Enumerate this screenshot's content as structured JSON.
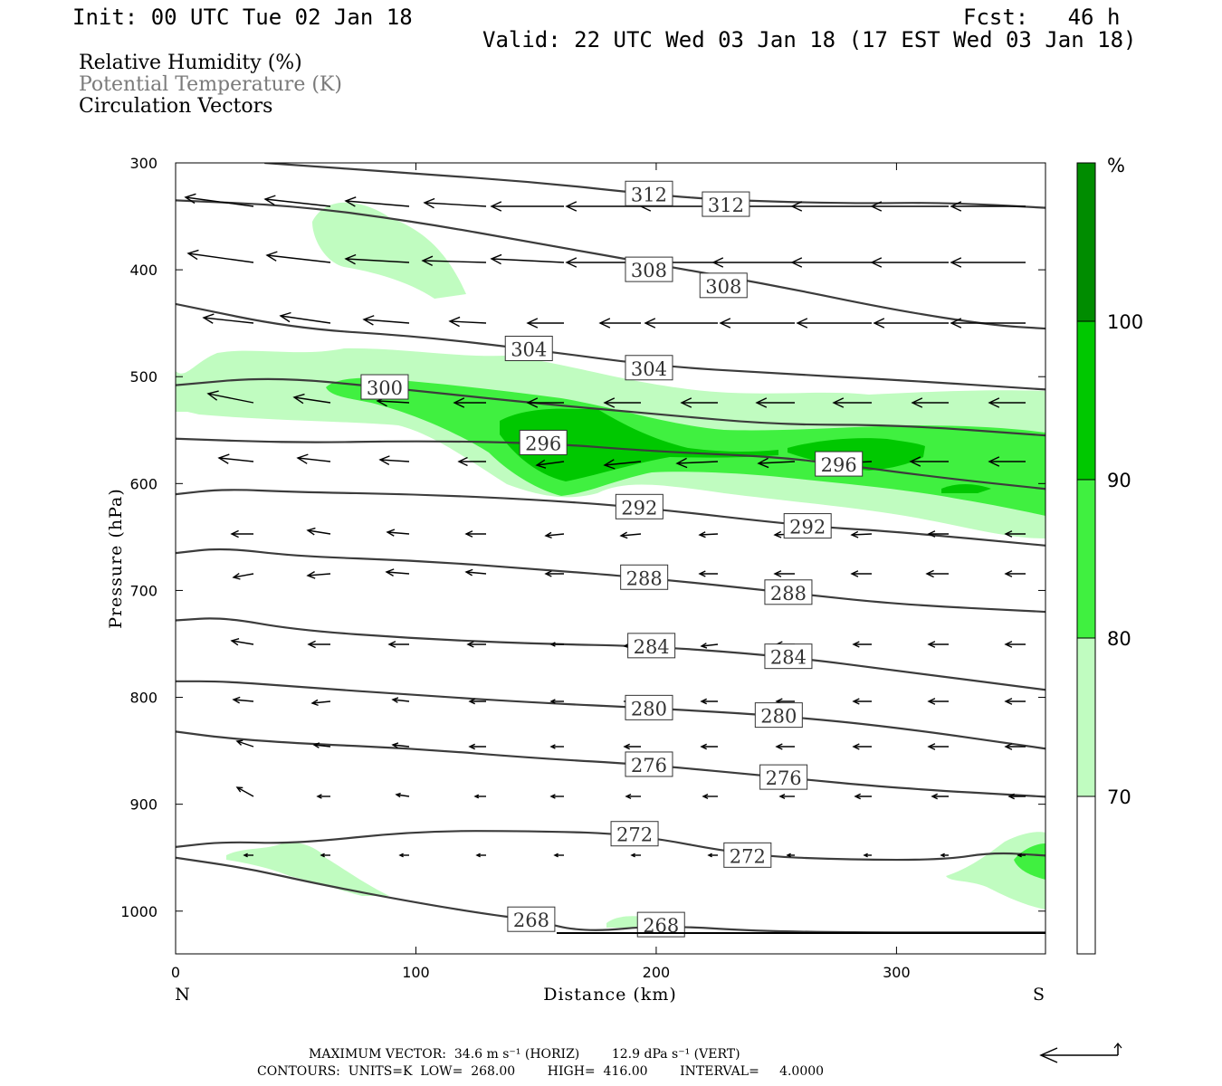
{
  "header": {
    "init": "Init: 00 UTC Tue 02 Jan 18",
    "fcst": "Fcst:   46 h",
    "valid": "Valid: 22 UTC Wed 03 Jan 18 (17 EST Wed 03 Jan 18)"
  },
  "legend": {
    "rh": "Relative Humidity (%)",
    "theta": "Potential Temperature (K)",
    "vectors": "Circulation Vectors"
  },
  "footer": {
    "max_vector": "MAXIMUM VECTOR:  34.6 m s⁻¹ (HORIZ)        12.9 dPa s⁻¹ (VERT)",
    "contours": "CONTOURS:  UNITS=K  LOW=  268.00        HIGH=  416.00        INTERVAL=     4.0000"
  },
  "colors": {
    "rh70": "#c0fcc0",
    "rh80": "#40f040",
    "rh90": "#00c800",
    "rh100": "#008c00",
    "theta": "#3c3c3c",
    "frame": "#000000"
  },
  "chart_data": {
    "type": "cross-section",
    "xlabel": "Distance (km)",
    "ylabel": "Pressure (hPa)",
    "xlim": [
      0,
      362
    ],
    "ylim": [
      1040,
      300
    ],
    "x_ticks": [
      "0",
      "100",
      "200",
      "300"
    ],
    "y_ticks": [
      "300",
      "400",
      "500",
      "600",
      "700",
      "800",
      "900",
      "1000"
    ],
    "endpoints": {
      "left": "N",
      "right": "S"
    },
    "colorbar": {
      "unit": "%",
      "levels": [
        "70",
        "80",
        "90",
        "100"
      ],
      "colors": [
        "#ffffff",
        "#c0fcc0",
        "#40f040",
        "#00c800",
        "#008c00"
      ]
    },
    "theta_contours": [
      {
        "value": 312,
        "labels": [
          [
            "312",
            197,
            329
          ],
          [
            "312",
            229,
            339
          ]
        ],
        "points": [
          [
            37,
            300
          ],
          [
            100,
            310
          ],
          [
            150,
            318
          ],
          [
            200,
            330
          ],
          [
            230,
            335
          ],
          [
            280,
            338
          ],
          [
            320,
            337
          ],
          [
            362,
            342
          ]
        ]
      },
      {
        "value": 308,
        "labels": [
          [
            "308",
            197,
            400
          ],
          [
            "308",
            228,
            415
          ]
        ],
        "points": [
          [
            0,
            335
          ],
          [
            50,
            340
          ],
          [
            100,
            355
          ],
          [
            150,
            375
          ],
          [
            200,
            395
          ],
          [
            250,
            415
          ],
          [
            300,
            438
          ],
          [
            340,
            452
          ],
          [
            362,
            455
          ]
        ]
      },
      {
        "value": 304,
        "labels": [
          [
            "304",
            147,
            474
          ],
          [
            "304",
            197,
            492
          ]
        ],
        "points": [
          [
            0,
            432
          ],
          [
            50,
            455
          ],
          [
            100,
            462
          ],
          [
            150,
            475
          ],
          [
            200,
            490
          ],
          [
            250,
            497
          ],
          [
            300,
            503
          ],
          [
            362,
            512
          ]
        ]
      },
      {
        "value": 300,
        "labels": [
          [
            "300",
            87,
            510
          ]
        ],
        "points": [
          [
            0,
            508
          ],
          [
            40,
            500
          ],
          [
            87,
            510
          ],
          [
            150,
            525
          ],
          [
            200,
            535
          ],
          [
            250,
            545
          ],
          [
            300,
            545
          ],
          [
            362,
            555
          ]
        ]
      },
      {
        "value": 296,
        "labels": [
          [
            "296",
            153,
            562
          ],
          [
            "296",
            276,
            582
          ]
        ],
        "points": [
          [
            0,
            558
          ],
          [
            50,
            562
          ],
          [
            100,
            560
          ],
          [
            153,
            562
          ],
          [
            200,
            570
          ],
          [
            250,
            575
          ],
          [
            276,
            582
          ],
          [
            320,
            595
          ],
          [
            362,
            605
          ]
        ]
      },
      {
        "value": 292,
        "labels": [
          [
            "292",
            193,
            622
          ],
          [
            "292",
            263,
            640
          ]
        ],
        "points": [
          [
            0,
            610
          ],
          [
            20,
            605
          ],
          [
            50,
            608
          ],
          [
            100,
            610
          ],
          [
            150,
            615
          ],
          [
            193,
            622
          ],
          [
            263,
            640
          ],
          [
            300,
            645
          ],
          [
            362,
            658
          ]
        ]
      },
      {
        "value": 288,
        "labels": [
          [
            "288",
            195,
            688
          ],
          [
            "288",
            255,
            702
          ]
        ],
        "points": [
          [
            0,
            665
          ],
          [
            20,
            660
          ],
          [
            50,
            668
          ],
          [
            100,
            672
          ],
          [
            150,
            680
          ],
          [
            195,
            688
          ],
          [
            255,
            702
          ],
          [
            300,
            713
          ],
          [
            362,
            720
          ]
        ]
      },
      {
        "value": 284,
        "labels": [
          [
            "284",
            198,
            752
          ],
          [
            "284",
            255,
            762
          ]
        ],
        "points": [
          [
            0,
            728
          ],
          [
            20,
            725
          ],
          [
            50,
            737
          ],
          [
            100,
            745
          ],
          [
            150,
            750
          ],
          [
            198,
            752
          ],
          [
            255,
            762
          ],
          [
            300,
            775
          ],
          [
            362,
            793
          ]
        ]
      },
      {
        "value": 280,
        "labels": [
          [
            "280",
            197,
            810
          ],
          [
            "280",
            251,
            817
          ]
        ],
        "points": [
          [
            0,
            785
          ],
          [
            20,
            785
          ],
          [
            50,
            790
          ],
          [
            100,
            798
          ],
          [
            150,
            805
          ],
          [
            197,
            810
          ],
          [
            251,
            817
          ],
          [
            300,
            828
          ],
          [
            362,
            848
          ]
        ]
      },
      {
        "value": 276,
        "labels": [
          [
            "276",
            197,
            863
          ],
          [
            "276",
            253,
            875
          ]
        ],
        "points": [
          [
            0,
            832
          ],
          [
            20,
            838
          ],
          [
            50,
            843
          ],
          [
            100,
            848
          ],
          [
            150,
            857
          ],
          [
            197,
            863
          ],
          [
            253,
            875
          ],
          [
            300,
            885
          ],
          [
            362,
            893
          ]
        ]
      },
      {
        "value": 272,
        "labels": [
          [
            "272",
            191,
            928
          ],
          [
            "272",
            238,
            948
          ]
        ],
        "points": [
          [
            0,
            940
          ],
          [
            20,
            935
          ],
          [
            50,
            937
          ],
          [
            100,
            925
          ],
          [
            150,
            925
          ],
          [
            191,
            928
          ],
          [
            238,
            948
          ],
          [
            280,
            952
          ],
          [
            320,
            952
          ],
          [
            340,
            945
          ],
          [
            362,
            948
          ]
        ]
      },
      {
        "value": 268,
        "labels": [
          [
            "268",
            148,
            1008
          ],
          [
            "268",
            202,
            1013
          ]
        ],
        "points": [
          [
            0,
            950
          ],
          [
            30,
            960
          ],
          [
            60,
            975
          ],
          [
            100,
            992
          ],
          [
            130,
            1003
          ],
          [
            148,
            1008
          ],
          [
            170,
            1020
          ],
          [
            202,
            1013
          ],
          [
            250,
            1020
          ],
          [
            362,
            1020
          ]
        ]
      }
    ]
  }
}
